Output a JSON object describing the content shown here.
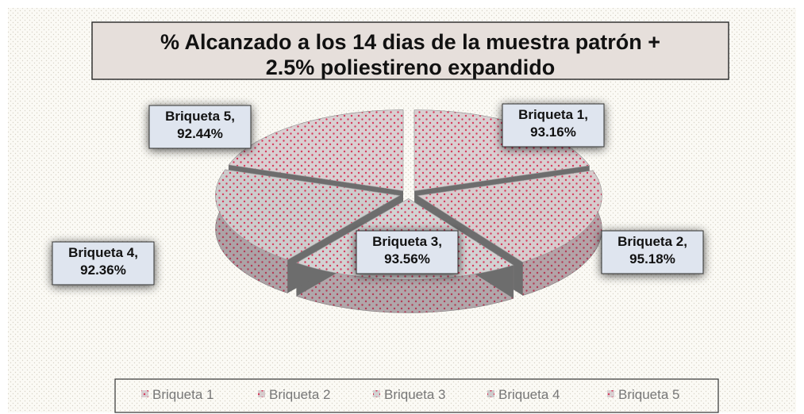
{
  "chart_data": {
    "type": "pie",
    "title": "% Alcanzado a los 14 dias de la muestra patrón + 2.5% poliestireno expandido",
    "categories": [
      "Briqueta 1",
      "Briqueta 2",
      "Briqueta 3",
      "Briqueta 4",
      "Briqueta 5"
    ],
    "values": [
      93.16,
      95.18,
      93.56,
      92.36,
      92.44
    ],
    "value_labels": [
      "Briqueta 1, 93.16%",
      "Briqueta 2, 95.18%",
      "Briqueta 3, 93.56%",
      "Briqueta 4, 92.36%",
      "Briqueta 5, 92.44%"
    ],
    "colors": [
      "#d9cfd1",
      "#d6cccd",
      "#d2d2d2",
      "#cccccc",
      "#d9cfd1"
    ],
    "legend": "bottom"
  }
}
